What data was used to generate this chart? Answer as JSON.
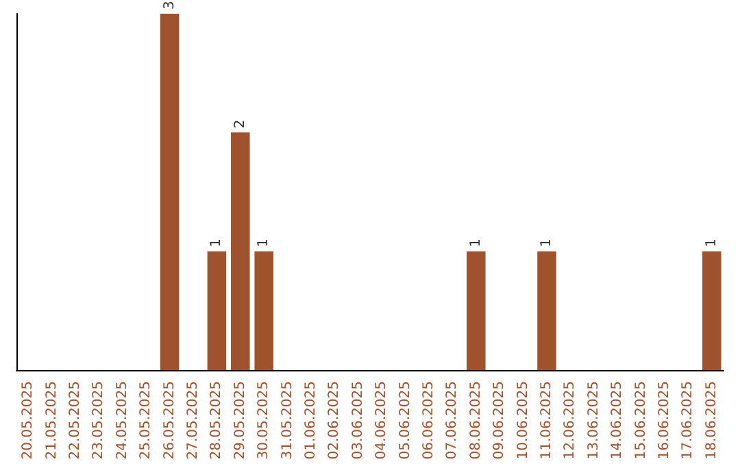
{
  "chart_data": {
    "type": "bar",
    "categories": [
      "20.05.2025",
      "21.05.2025",
      "22.05.2025",
      "23.05.2025",
      "24.05.2025",
      "25.05.2025",
      "26.05.2025",
      "27.05.2025",
      "28.05.2025",
      "29.05.2025",
      "30.05.2025",
      "31.05.2025",
      "01.06.2025",
      "02.06.2025",
      "03.06.2025",
      "04.06.2025",
      "05.06.2025",
      "06.06.2025",
      "07.06.2025",
      "08.06.2025",
      "09.06.2025",
      "10.06.2025",
      "11.06.2025",
      "12.06.2025",
      "13.06.2025",
      "14.06.2025",
      "15.06.2025",
      "16.06.2025",
      "17.06.2025",
      "18.06.2025"
    ],
    "values": [
      0,
      0,
      0,
      0,
      0,
      0,
      3,
      0,
      1,
      2,
      1,
      0,
      0,
      0,
      0,
      0,
      0,
      0,
      0,
      1,
      0,
      0,
      1,
      0,
      0,
      0,
      0,
      0,
      0,
      1
    ],
    "value_labels": [
      null,
      null,
      null,
      null,
      null,
      null,
      "3",
      null,
      "1",
      "2",
      "1",
      null,
      null,
      null,
      null,
      null,
      null,
      null,
      null,
      "1",
      null,
      null,
      "1",
      null,
      null,
      null,
      null,
      null,
      null,
      "1"
    ],
    "color": "#a0522d",
    "grid": false
  }
}
